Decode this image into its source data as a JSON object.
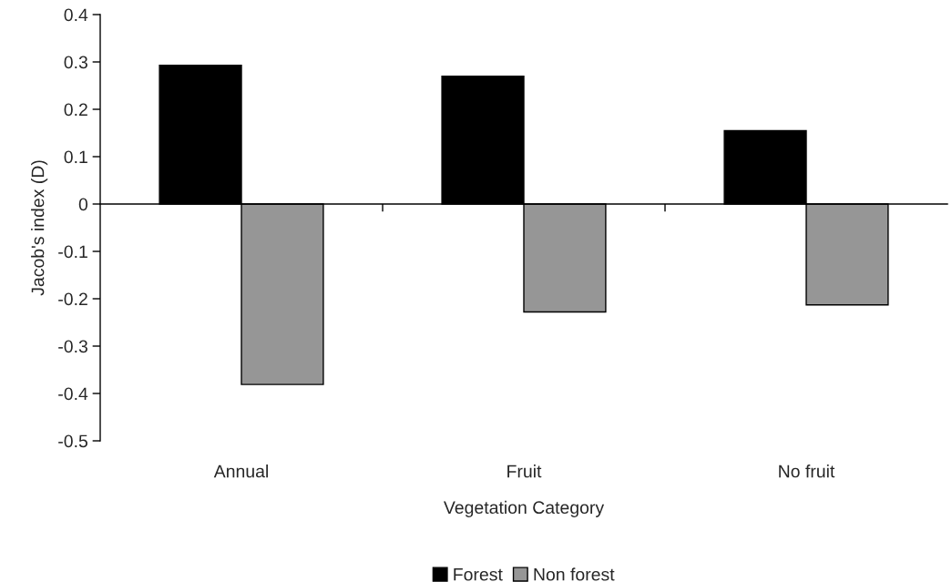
{
  "chart_data": {
    "type": "bar",
    "xlabel": "Vegetation Category",
    "ylabel": "Jacob's index (D)",
    "categories": [
      "Annual",
      "Fruit",
      "No fruit"
    ],
    "series": [
      {
        "name": "Forest",
        "color": "#000000",
        "values": [
          0.293,
          0.27,
          0.155
        ]
      },
      {
        "name": "Non forest",
        "color": "#969696",
        "values": [
          -0.381,
          -0.228,
          -0.213
        ]
      }
    ],
    "ylim": [
      -0.5,
      0.4
    ],
    "yticks": [
      -0.5,
      -0.4,
      -0.3,
      -0.2,
      -0.1,
      0,
      0.1,
      0.2,
      0.3,
      0.4
    ],
    "legend": "bottom"
  }
}
